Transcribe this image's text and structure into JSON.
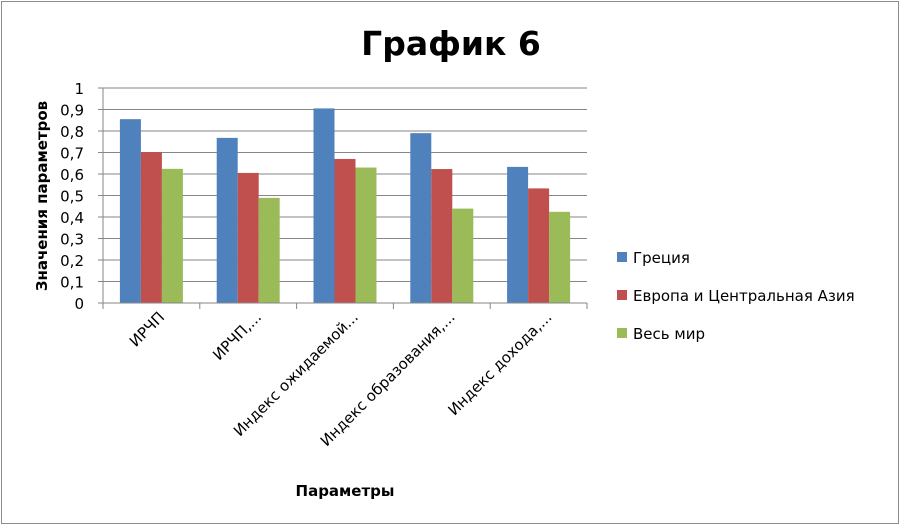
{
  "chart_data": {
    "type": "bar",
    "title": "График 6",
    "xlabel": "Параметры",
    "ylabel": "Значения параметров",
    "ylim": [
      0,
      1
    ],
    "yticks": [
      "0",
      "0,1",
      "0,2",
      "0,3",
      "0,4",
      "0,5",
      "0,6",
      "0,7",
      "0,8",
      "0,9",
      "1"
    ],
    "categories": [
      "ИРЧП",
      "ИРЧП,...",
      "Индекс ожидаемой...",
      "Индекс образования,...",
      "Индекс дохода,..."
    ],
    "series": [
      {
        "name": "Греция",
        "color": "#4F81BD",
        "values": [
          0.855,
          0.768,
          0.905,
          0.79,
          0.633
        ]
      },
      {
        "name": "Европа и Центральная Азия",
        "color": "#C0504D",
        "values": [
          0.702,
          0.605,
          0.67,
          0.623,
          0.533
        ]
      },
      {
        "name": "Весь мир",
        "color": "#9BBB59",
        "values": [
          0.624,
          0.489,
          0.63,
          0.439,
          0.424
        ]
      }
    ],
    "grid": true,
    "legend_position": "right"
  }
}
